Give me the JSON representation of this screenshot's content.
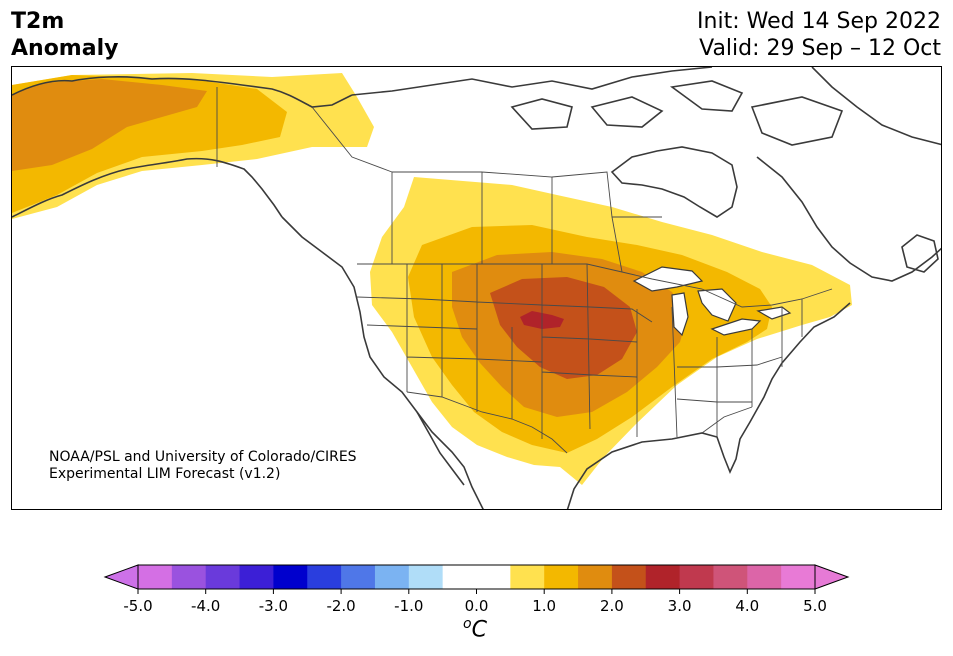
{
  "title": {
    "line1": "T2m",
    "line2": "Anomaly",
    "init": "Init: Wed 14 Sep 2022",
    "valid": "Valid: 29 Sep – 12 Oct"
  },
  "credit": {
    "line1": "NOAA/PSL and University of Colorado/CIRES",
    "line2": "Experimental LIM Forecast (v1.2)"
  },
  "colorbar": {
    "unit_base": "C",
    "unit_sup": "o",
    "tick_labels": [
      "-5.0",
      "-4.0",
      "-3.0",
      "-2.0",
      "-1.0",
      "0.0",
      "1.0",
      "2.0",
      "3.0",
      "4.0",
      "5.0"
    ],
    "colors": [
      "#d46fe4",
      "#9a52df",
      "#6a3adb",
      "#3c1fd6",
      "#0000cd",
      "#2a3ede",
      "#4f77e8",
      "#7bb3f2",
      "#b0ddf8",
      "#ffffff",
      "#ffffff",
      "#ffe14f",
      "#f3b800",
      "#e08c0f",
      "#c4511a",
      "#b0232a",
      "#c0394e",
      "#cf5479",
      "#dc65a8",
      "#e87ad6"
    ],
    "under_color": "#cd71e8",
    "over_color": "#e67ad6"
  },
  "anomaly_colors": {
    "light_yellow": "#ffe14f",
    "yellow": "#f3b800",
    "orange": "#e08c0f",
    "dark_orange": "#c4511a",
    "red": "#b0232a"
  }
}
